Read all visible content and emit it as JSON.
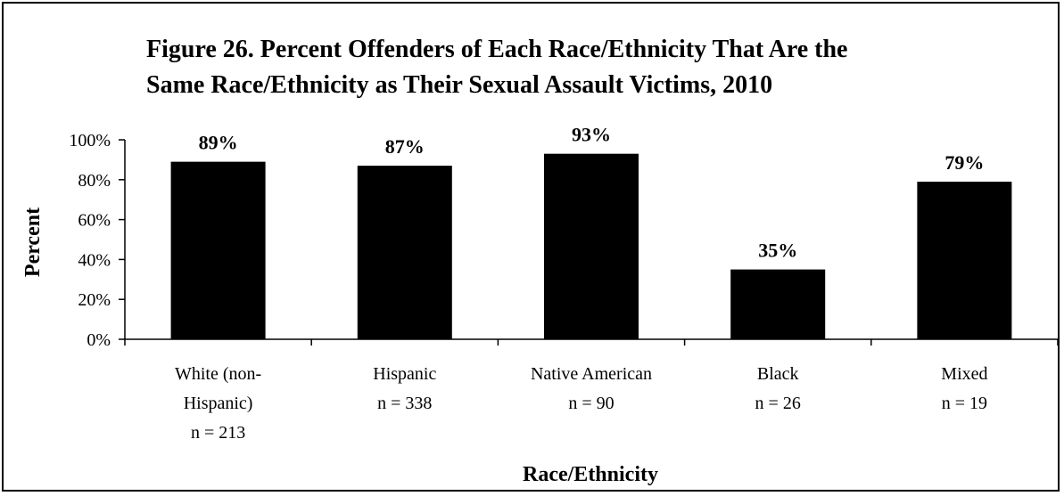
{
  "chart_data": {
    "type": "bar",
    "title": "Figure 26.  Percent Offenders of Each Race/Ethnicity That Are the Same Race/Ethnicity as Their Sexual Assault Victims, 2010",
    "title_lines": [
      "Figure 26.  Percent Offenders of Each Race/Ethnicity That Are the",
      "Same Race/Ethnicity as Their Sexual Assault Victims, 2010"
    ],
    "xlabel": "Race/Ethnicity",
    "ylabel": "Percent",
    "ylim": [
      0,
      100
    ],
    "yticks": [
      0,
      20,
      40,
      60,
      80,
      100
    ],
    "ytick_labels": [
      "0%",
      "20%",
      "40%",
      "60%",
      "80%",
      "100%"
    ],
    "categories": [
      [
        "White (non-",
        "Hispanic)",
        "n = 213"
      ],
      [
        "Hispanic",
        "n = 338"
      ],
      [
        "Native American",
        "n = 90"
      ],
      [
        "Black",
        "n = 26"
      ],
      [
        "Mixed",
        "n = 19"
      ]
    ],
    "values": [
      89,
      87,
      93,
      35,
      79
    ],
    "value_labels": [
      "89%",
      "87%",
      "93%",
      "35%",
      "79%"
    ],
    "bar_color": "#000000",
    "grid": false,
    "legend": "none"
  }
}
